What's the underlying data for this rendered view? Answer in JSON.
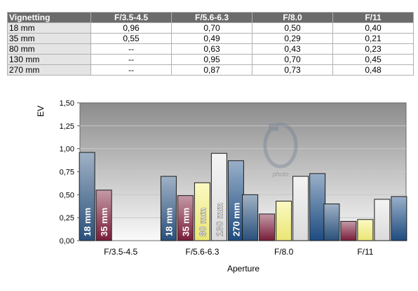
{
  "table": {
    "header": [
      "Vignetting",
      "F/3.5-4.5",
      "F/5.6-6.3",
      "F/8.0",
      "F/11"
    ],
    "rows": [
      [
        "18 mm",
        "0,96",
        "0,70",
        "0,50",
        "0,40"
      ],
      [
        "35 mm",
        "0,55",
        "0,49",
        "0,29",
        "0,21"
      ],
      [
        "80 mm",
        "--",
        "0,63",
        "0,43",
        "0,23"
      ],
      [
        "130 mm",
        "--",
        "0,95",
        "0,70",
        "0,45"
      ],
      [
        "270 mm",
        "--",
        "0,87",
        "0,73",
        "0,48"
      ]
    ]
  },
  "chart_data": {
    "type": "bar",
    "categories": [
      "F/3.5-4.5",
      "F/5.6-6.3",
      "F/8.0",
      "F/11"
    ],
    "xlabel": "Aperture",
    "ylabel": "EV",
    "ylim": [
      0,
      1.5
    ],
    "yticks": [
      "0,00",
      "0,25",
      "0,50",
      "0,75",
      "1,00",
      "1,25",
      "1,50"
    ],
    "grid": true,
    "watermark": "photo",
    "series": [
      {
        "name": "18 mm",
        "values": [
          0.96,
          0.7,
          0.5,
          0.4
        ],
        "color": "#2c5480"
      },
      {
        "name": "35 mm",
        "values": [
          0.55,
          0.49,
          0.29,
          0.21
        ],
        "color": "#7e1e3c"
      },
      {
        "name": "80 mm",
        "values": [
          null,
          0.63,
          0.43,
          0.23
        ],
        "color": "#f6f27a"
      },
      {
        "name": "130 mm",
        "values": [
          null,
          0.95,
          0.7,
          0.45
        ],
        "color": "#e6e6e6"
      },
      {
        "name": "270 mm",
        "values": [
          null,
          0.87,
          0.73,
          0.48
        ],
        "color": "#1e4f86"
      }
    ]
  }
}
